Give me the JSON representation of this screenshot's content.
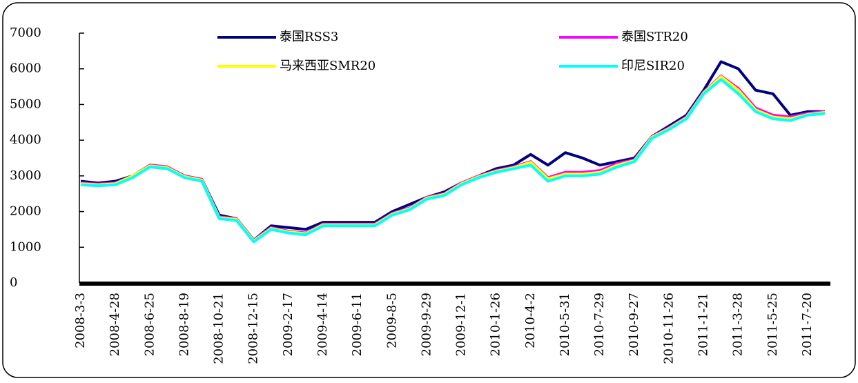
{
  "chart_data": {
    "type": "line",
    "categories": [
      "2008-3-3",
      null,
      "2008-4-28",
      null,
      "2008-6-25",
      null,
      "2008-8-19",
      null,
      "2008-10-21",
      null,
      "2008-12-15",
      null,
      "2009-2-17",
      null,
      "2009-4-14",
      null,
      "2009-6-11",
      null,
      "2009-8-5",
      null,
      "2009-9-29",
      null,
      "2009-12-1",
      null,
      "2010-1-26",
      null,
      "2010-4-2",
      null,
      "2010-5-31",
      null,
      "2010-7-29",
      null,
      "2010-9-27",
      null,
      "2010-11-26",
      null,
      "2011-1-21",
      null,
      "2011-3-28",
      null,
      "2011-5-25",
      null,
      "2011-7-20",
      null
    ],
    "series": [
      {
        "name": "泰国RSS3",
        "color": "#000080",
        "values": [
          2850,
          2800,
          2850,
          3000,
          3300,
          3250,
          3000,
          2900,
          1900,
          1800,
          1200,
          1600,
          1550,
          1500,
          1700,
          1700,
          1700,
          1700,
          2000,
          2200,
          2400,
          2550,
          2800,
          3000,
          3200,
          3300,
          3600,
          3300,
          3650,
          3500,
          3300,
          3400,
          3500,
          4100,
          4400,
          4700,
          5400,
          6200,
          6000,
          5400,
          5300,
          4700,
          4800,
          4800
        ]
      },
      {
        "name": "泰国STR20",
        "color": "#ff00ff",
        "values": [
          2800,
          2770,
          2800,
          3000,
          3300,
          3250,
          3000,
          2900,
          1850,
          1800,
          1200,
          1550,
          1450,
          1400,
          1650,
          1650,
          1650,
          1650,
          1950,
          2100,
          2400,
          2500,
          2800,
          3000,
          3150,
          3250,
          3400,
          2950,
          3100,
          3100,
          3150,
          3350,
          3450,
          4100,
          4350,
          4650,
          5350,
          5800,
          5450,
          4900,
          4700,
          4650,
          4750,
          4800
        ]
      },
      {
        "name": "马来西亚SMR20",
        "color": "#ffff00",
        "values": [
          2780,
          2750,
          2780,
          3000,
          3280,
          3230,
          2980,
          2880,
          1830,
          1780,
          1180,
          1530,
          1430,
          1380,
          1630,
          1630,
          1630,
          1630,
          1930,
          2080,
          2380,
          2480,
          2780,
          2980,
          3130,
          3230,
          3380,
          2920,
          3050,
          3050,
          3100,
          3300,
          3430,
          4080,
          4330,
          4630,
          5330,
          5780,
          5400,
          4850,
          4650,
          4600,
          4720,
          4780
        ]
      },
      {
        "name": "印尼SIR20",
        "color": "#00ffff",
        "values": [
          2750,
          2720,
          2750,
          2950,
          3250,
          3200,
          2950,
          2850,
          1800,
          1750,
          1150,
          1500,
          1400,
          1350,
          1600,
          1600,
          1600,
          1600,
          1900,
          2050,
          2350,
          2450,
          2750,
          2950,
          3100,
          3200,
          3300,
          2850,
          3000,
          3000,
          3050,
          3250,
          3400,
          4050,
          4300,
          4600,
          5300,
          5700,
          5300,
          4800,
          4600,
          4550,
          4700,
          4750
        ]
      }
    ],
    "ylim": [
      0,
      7000
    ],
    "yticks": [
      0,
      1000,
      2000,
      3000,
      4000,
      5000,
      6000,
      7000
    ]
  }
}
